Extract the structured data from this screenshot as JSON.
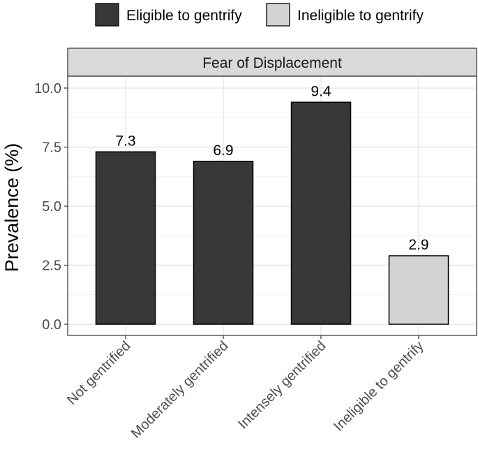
{
  "chart_data": {
    "type": "bar",
    "title": "Fear of Displacement",
    "xlabel": "",
    "ylabel": "Prevalence (%)",
    "ylim": [
      0,
      10.4
    ],
    "yticks": [
      "0.0",
      "2.5",
      "5.0",
      "7.5",
      "10.0"
    ],
    "categories": [
      "Not gentrified",
      "Moderately gentrified",
      "Intensely gentrified",
      "Ineligible to gentrify"
    ],
    "values": [
      7.3,
      6.9,
      9.4,
      2.9
    ],
    "labels": [
      "7.3",
      "6.9",
      "9.4",
      "2.9"
    ],
    "groups": [
      "eligible",
      "eligible",
      "eligible",
      "ineligible"
    ],
    "legend": [
      {
        "key": "eligible",
        "label": "Eligible to gentrify",
        "color": "#383838"
      },
      {
        "key": "ineligible",
        "label": "Ineligible to gentrify",
        "color": "#d3d3d3"
      }
    ],
    "legend_position": "top",
    "grid": true
  }
}
